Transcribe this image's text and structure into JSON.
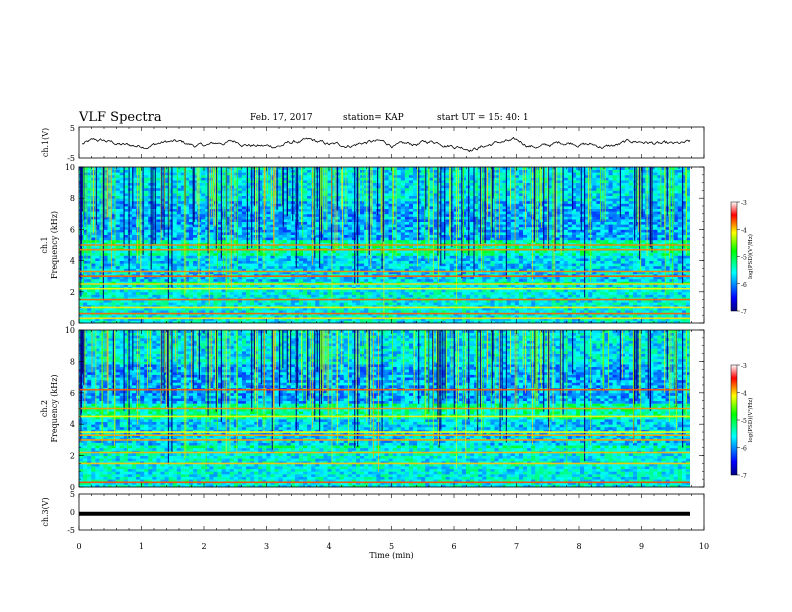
{
  "header": {
    "title": "VLF Spectra",
    "date": "Feb. 17, 2017",
    "station": "station= KAP",
    "start": "start  UT =   15: 40: 1"
  },
  "chart_data": [
    {
      "type": "line",
      "name": "waveform-ch1",
      "ylabel": "ch.1(V)",
      "ylim": [
        -5,
        5
      ],
      "yticks": [
        "5",
        "-5"
      ],
      "xlim": [
        0,
        10
      ],
      "approx_level": -0.5,
      "approx_amplitude": 1.2
    },
    {
      "type": "heatmap",
      "name": "spectrogram-ch1",
      "ylabel": "ch.1\nFrequency (kHz)",
      "ylim": [
        0,
        10
      ],
      "yticks": [
        "0",
        "2",
        "4",
        "6",
        "8",
        "10"
      ],
      "xlim": [
        0,
        10
      ],
      "colorbar": {
        "label": "log(PSD)(V²/Hz)",
        "range": [
          -7,
          -3
        ],
        "ticks": [
          "-3",
          "-4",
          "-5",
          "-6",
          "-7"
        ]
      },
      "bands_khz": [
        0.3,
        0.6,
        1.0,
        1.5,
        2.2,
        2.5,
        3.0,
        3.3,
        4.7,
        5.0
      ]
    },
    {
      "type": "heatmap",
      "name": "spectrogram-ch2",
      "ylabel": "ch.2\nFrequency (kHz)",
      "ylim": [
        0,
        10
      ],
      "yticks": [
        "0",
        "2",
        "4",
        "6",
        "8",
        "10"
      ],
      "xlim": [
        0,
        10
      ],
      "colorbar": {
        "label": "log(PSD)(V²/Hz)",
        "range": [
          -7,
          -3
        ],
        "ticks": [
          "-3",
          "-4",
          "-5",
          "-6",
          "-7"
        ]
      },
      "bands_khz": [
        0.3,
        1.5,
        2.2,
        3.0,
        3.3,
        3.5,
        4.5,
        5.0,
        6.2
      ]
    },
    {
      "type": "line",
      "name": "waveform-ch3",
      "ylabel": "ch.3(V)",
      "ylim": [
        -5,
        5
      ],
      "yticks": [
        "5",
        "0",
        "-5"
      ],
      "xlim": [
        0,
        10
      ],
      "approx_level": -0.5,
      "xticks": [
        "0",
        "1",
        "2",
        "3",
        "4",
        "5",
        "6",
        "7",
        "8",
        "9",
        "10"
      ],
      "xlabel": "Time (min)"
    }
  ]
}
